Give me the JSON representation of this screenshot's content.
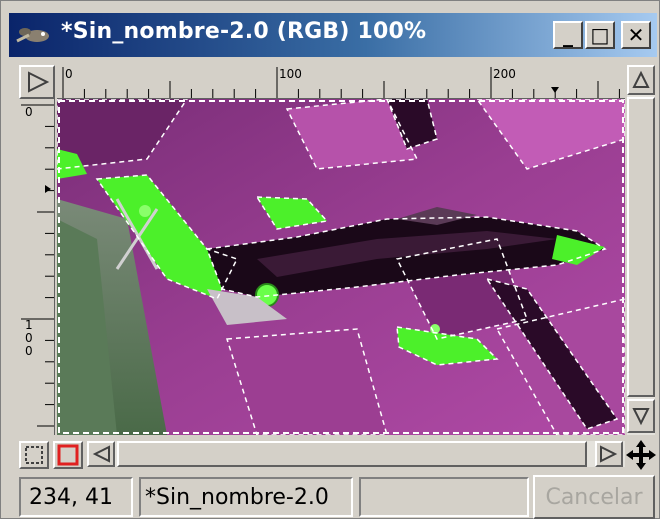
{
  "window": {
    "title": "*Sin_nombre-2.0 (RGB) 100%",
    "min_glyph": "_",
    "max_glyph": "□",
    "close_glyph": "✕"
  },
  "rulers": {
    "h_labels": [
      "0",
      "100",
      "200"
    ],
    "v_labels": [
      "0",
      "1\n0\n0"
    ]
  },
  "statusbar": {
    "coords": "234, 41",
    "image_name": "*Sin_nombre-2.0",
    "progress": "",
    "cancel_label": "Cancelar"
  },
  "icons": {
    "title": "gimp-wilber-icon",
    "corner": "ruler-corner-triangle-icon",
    "quickmask_off": "quickmask-dotted-icon",
    "quickmask_on": "quickmask-red-icon",
    "navigate": "navigate-arrows-icon"
  },
  "colors": {
    "title_start": "#0a246a",
    "title_end": "#a6caf0",
    "canvas_magenta": "#8e3a86",
    "plane_green": "#4cf02a",
    "quickmask_red": "#e02020"
  }
}
